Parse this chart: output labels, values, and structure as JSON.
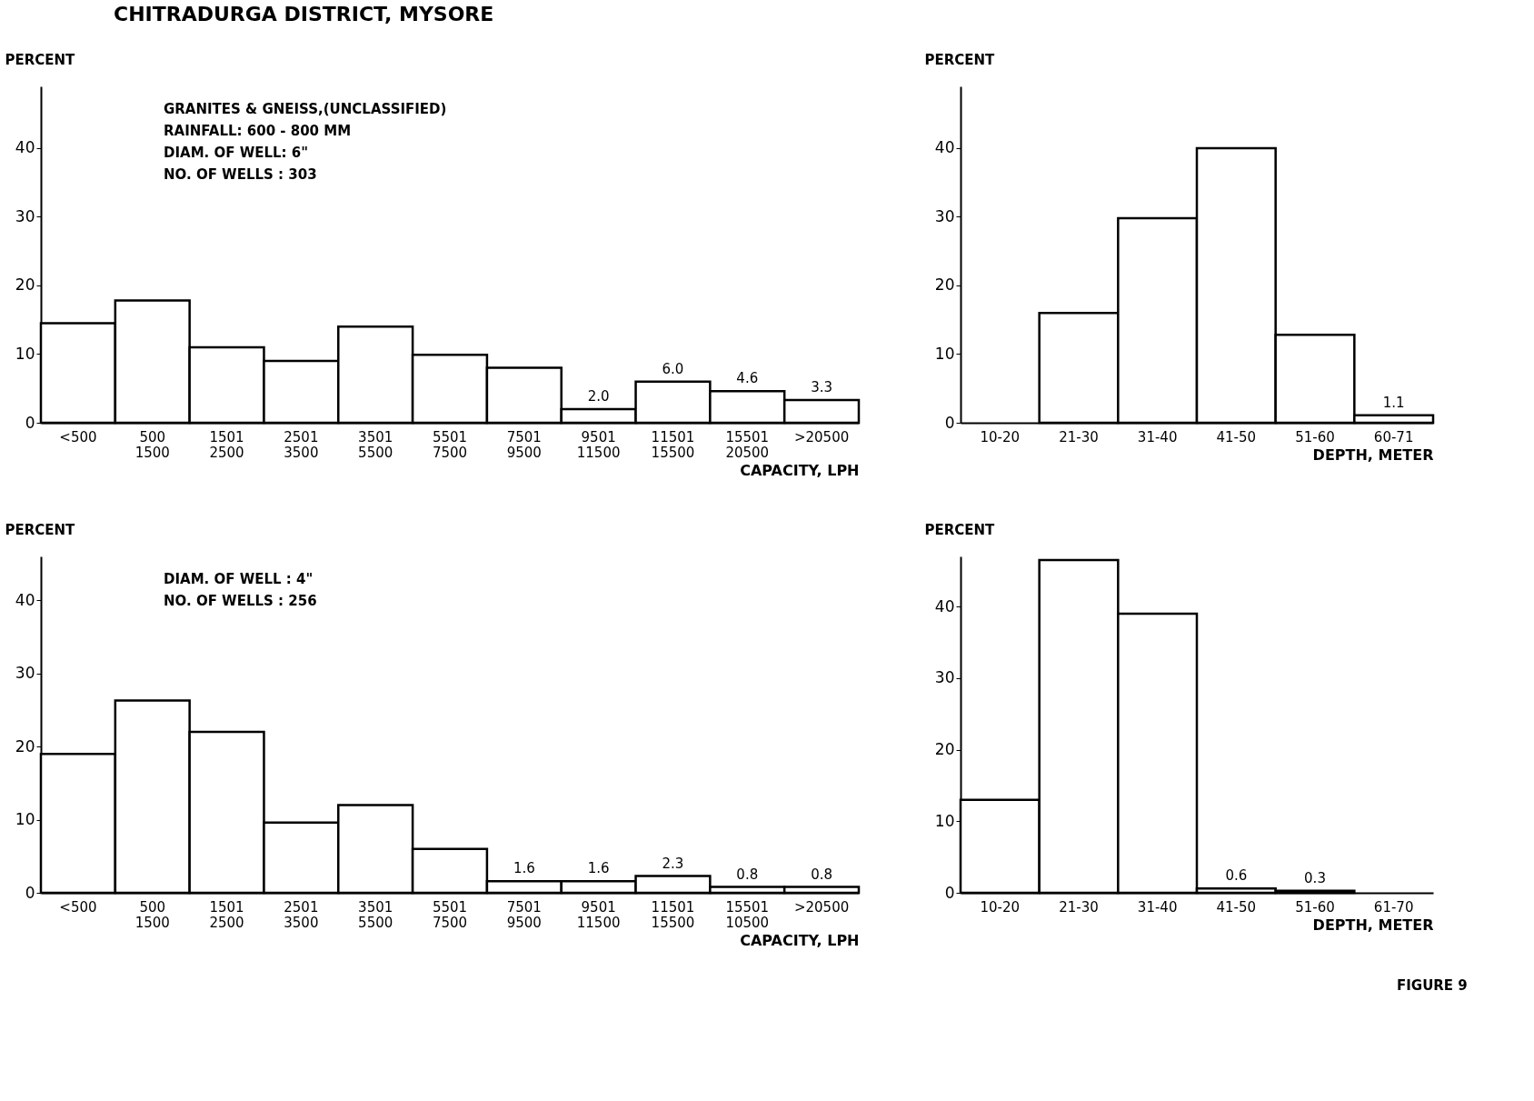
{
  "chart_data": [
    {
      "type": "bar",
      "title": "CHITRADURGA DISTRICT, MYSORE",
      "xlabel": "CAPACITY, LPH",
      "ylabel": "PERCENT",
      "categories": [
        "<500",
        "500\n1500",
        "1501\n2500",
        "2501\n3500",
        "3501\n5500",
        "5501\n7500",
        "7501\n9500",
        "9501\n11500",
        "11501\n15500",
        "15501\n20500",
        ">20500"
      ],
      "values": [
        14.5,
        17.8,
        11,
        9,
        14,
        9.9,
        8,
        2.0,
        6.0,
        4.6,
        3.3
      ],
      "value_labels": [
        null,
        null,
        null,
        null,
        null,
        null,
        null,
        "2.0",
        "6.0",
        "4.6",
        "3.3"
      ],
      "color": "#ffffff",
      "ylim": [
        0,
        49
      ],
      "yticks": [
        0,
        10,
        20,
        30,
        40
      ],
      "grid": false,
      "annotations": [
        "GRANITES & GNEISS,(UNCLASSIFIED)",
        "RAINFALL: 600 - 800 MM",
        "DIAM. OF WELL: 6\"",
        "NO. OF WELLS : 303"
      ]
    },
    {
      "type": "bar",
      "xlabel": "DEPTH, METER",
      "ylabel": "PERCENT",
      "categories": [
        "10-20",
        "21-30",
        "31-40",
        "41-50",
        "51-60",
        "60-71"
      ],
      "values": [
        null,
        16,
        29.8,
        40,
        12.8,
        1.1
      ],
      "value_labels": [
        null,
        null,
        null,
        null,
        null,
        "1.1"
      ],
      "color": "#ffffff",
      "ylim": [
        0,
        49
      ],
      "yticks": [
        0,
        10,
        20,
        30,
        40
      ],
      "grid": false
    },
    {
      "type": "bar",
      "xlabel": "CAPACITY, LPH",
      "ylabel": "PERCENT",
      "categories": [
        "<500",
        "500\n1500",
        "1501\n2500",
        "2501\n3500",
        "3501\n5500",
        "5501\n7500",
        "7501\n9500",
        "9501\n11500",
        "11501\n15500",
        "15501\n10500",
        ">20500"
      ],
      "values": [
        19,
        26.3,
        22,
        9.6,
        12,
        6,
        1.6,
        1.6,
        2.3,
        0.8,
        0.8
      ],
      "value_labels": [
        null,
        null,
        null,
        null,
        null,
        null,
        "1.6",
        "1.6",
        "2.3",
        "0.8",
        "0.8"
      ],
      "color": "#ffffff",
      "ylim": [
        0,
        46
      ],
      "yticks": [
        0,
        10,
        20,
        30,
        40
      ],
      "grid": false,
      "annotations": [
        "DIAM. OF WELL : 4\"",
        "NO. OF WELLS : 256"
      ]
    },
    {
      "type": "bar",
      "xlabel": "DEPTH, METER",
      "ylabel": "PERCENT",
      "categories": [
        "10-20",
        "21-30",
        "31-40",
        "41-50",
        "51-60",
        "61-70"
      ],
      "values": [
        13,
        46.5,
        39,
        0.6,
        0.3,
        null
      ],
      "value_labels": [
        null,
        null,
        null,
        "0.6",
        "0.3",
        null
      ],
      "color": "#ffffff",
      "ylim": [
        0,
        47
      ],
      "yticks": [
        0,
        10,
        20,
        30,
        40
      ],
      "grid": false,
      "annotations": [
        "FIGURE 9"
      ]
    }
  ]
}
